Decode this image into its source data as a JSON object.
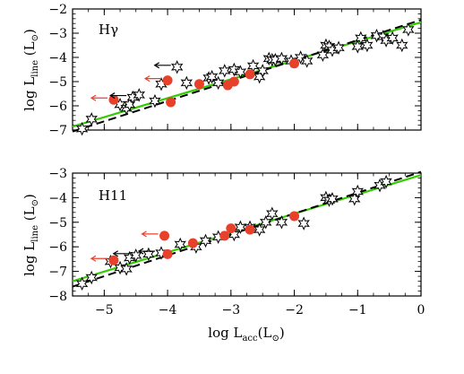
{
  "chart_data": [
    {
      "type": "scatter",
      "panel_label": "Hγ",
      "xlim": [
        -5.5,
        0
      ],
      "ylim": [
        -7,
        -2
      ],
      "xticks": [
        -5,
        -4,
        -3,
        -2,
        -1,
        0
      ],
      "yticks": [
        -7,
        -6,
        -5,
        -4,
        -3,
        -2
      ],
      "xtick_labels": [],
      "ytick_labels": [
        "−7",
        "−6",
        "−5",
        "−4",
        "−3",
        "−2"
      ],
      "ylabel": {
        "main": "log L",
        "sub": "line",
        "unit": "(L",
        "unit_end": ")"
      },
      "fit_lines": [
        {
          "style": "solid",
          "color": "#33cc00",
          "x": [
            -5.5,
            0
          ],
          "y": [
            -6.86,
            -2.55
          ]
        },
        {
          "style": "dashed",
          "color": "#000000",
          "x": [
            -5.5,
            0
          ],
          "y": [
            -7.06,
            -2.45
          ]
        }
      ],
      "series": [
        {
          "marker": "star",
          "color": "#000000",
          "points": [
            [
              -5.35,
              -6.95
            ],
            [
              -5.2,
              -6.55
            ],
            [
              -4.75,
              -5.95
            ],
            [
              -4.65,
              -6.1
            ],
            [
              -4.6,
              -5.95
            ],
            [
              -4.55,
              -5.65
            ],
            [
              -4.45,
              -5.55
            ],
            [
              -4.2,
              -5.8
            ],
            [
              -4.1,
              -5.1
            ],
            [
              -3.85,
              -4.4
            ],
            [
              -3.7,
              -5.05
            ],
            [
              -3.35,
              -4.85
            ],
            [
              -3.3,
              -4.8
            ],
            [
              -3.2,
              -5.05
            ],
            [
              -3.1,
              -4.55
            ],
            [
              -2.95,
              -4.5
            ],
            [
              -2.85,
              -4.6
            ],
            [
              -2.65,
              -4.35
            ],
            [
              -2.55,
              -4.8
            ],
            [
              -2.5,
              -4.55
            ],
            [
              -2.4,
              -4.05
            ],
            [
              -2.35,
              -4.1
            ],
            [
              -2.3,
              -4.1
            ],
            [
              -2.2,
              -4.05
            ],
            [
              -2.05,
              -4.15
            ],
            [
              -1.9,
              -4.0
            ],
            [
              -1.8,
              -4.15
            ],
            [
              -1.55,
              -3.9
            ],
            [
              -1.5,
              -3.5
            ],
            [
              -1.45,
              -3.55
            ],
            [
              -1.4,
              -3.7
            ],
            [
              -1.3,
              -3.6
            ],
            [
              -1.0,
              -3.55
            ],
            [
              -0.95,
              -3.2
            ],
            [
              -0.85,
              -3.5
            ],
            [
              -0.7,
              -3.1
            ],
            [
              -0.6,
              -3.15
            ],
            [
              -0.55,
              -3.3
            ],
            [
              -0.45,
              -3.2
            ],
            [
              -0.3,
              -3.5
            ],
            [
              -0.2,
              -2.85
            ]
          ]
        },
        {
          "marker": "circle",
          "color": "#e8412b",
          "points": [
            [
              -4.85,
              -5.75
            ],
            [
              -4.0,
              -4.95
            ],
            [
              -3.95,
              -5.85
            ],
            [
              -3.5,
              -5.1
            ],
            [
              -3.05,
              -5.15
            ],
            [
              -2.95,
              -5.0
            ],
            [
              -2.7,
              -4.7
            ],
            [
              -2.0,
              -4.25
            ]
          ]
        }
      ],
      "upper_limits": [
        {
          "x": -4.85,
          "y": -5.75,
          "color": "#e8412b"
        },
        {
          "x": -4.0,
          "y": -4.95,
          "color": "#e8412b"
        },
        {
          "x": -3.85,
          "y": -4.4,
          "color": "#000000"
        },
        {
          "x": -4.55,
          "y": -5.65,
          "color": "#000000"
        }
      ]
    },
    {
      "type": "scatter",
      "panel_label": "H11",
      "xlim": [
        -5.5,
        0
      ],
      "ylim": [
        -8,
        -3
      ],
      "xticks": [
        -5,
        -4,
        -3,
        -2,
        -1,
        0
      ],
      "yticks": [
        -8,
        -7,
        -6,
        -5,
        -4,
        -3
      ],
      "xtick_labels": [
        "−5",
        "−4",
        "−3",
        "−2",
        "−1",
        "0"
      ],
      "ytick_labels": [
        "−8",
        "−7",
        "−6",
        "−5",
        "−4",
        "−3"
      ],
      "ylabel": {
        "main": "log L",
        "sub": "line",
        "unit": "(L",
        "unit_end": ")"
      },
      "xlabel": {
        "main": "log L",
        "sub": "acc",
        "unit": "(L",
        "unit_end": ")"
      },
      "fit_lines": [
        {
          "style": "solid",
          "color": "#33cc00",
          "x": [
            -5.5,
            0
          ],
          "y": [
            -7.4,
            -3.08
          ]
        },
        {
          "style": "dashed",
          "color": "#000000",
          "x": [
            -5.5,
            0
          ],
          "y": [
            -7.62,
            -2.95
          ]
        }
      ],
      "series": [
        {
          "marker": "star",
          "color": "#000000",
          "points": [
            [
              -5.35,
              -7.5
            ],
            [
              -5.2,
              -7.25
            ],
            [
              -4.9,
              -6.6
            ],
            [
              -4.75,
              -6.85
            ],
            [
              -4.65,
              -6.9
            ],
            [
              -4.6,
              -6.45
            ],
            [
              -4.5,
              -6.35
            ],
            [
              -4.3,
              -6.3
            ],
            [
              -4.1,
              -6.25
            ],
            [
              -3.8,
              -5.9
            ],
            [
              -3.55,
              -6.0
            ],
            [
              -3.4,
              -5.75
            ],
            [
              -3.2,
              -5.6
            ],
            [
              -2.95,
              -5.5
            ],
            [
              -2.85,
              -5.2
            ],
            [
              -2.7,
              -5.2
            ],
            [
              -2.55,
              -5.3
            ],
            [
              -2.45,
              -5.0
            ],
            [
              -2.35,
              -4.65
            ],
            [
              -2.2,
              -5.0
            ],
            [
              -1.85,
              -5.05
            ],
            [
              -1.5,
              -4.0
            ],
            [
              -1.45,
              -4.1
            ],
            [
              -1.4,
              -4.05
            ],
            [
              -1.05,
              -4.05
            ],
            [
              -1.0,
              -3.75
            ],
            [
              -0.65,
              -3.5
            ],
            [
              -0.55,
              -3.35
            ]
          ]
        },
        {
          "marker": "circle",
          "color": "#e8412b",
          "points": [
            [
              -4.85,
              -6.55
            ],
            [
              -4.05,
              -5.55
            ],
            [
              -4.0,
              -6.3
            ],
            [
              -3.6,
              -5.85
            ],
            [
              -3.1,
              -5.55
            ],
            [
              -3.0,
              -5.25
            ],
            [
              -2.7,
              -5.3
            ],
            [
              -2.0,
              -4.75
            ]
          ]
        }
      ],
      "upper_limits": [
        {
          "x": -4.85,
          "y": -6.55,
          "color": "#e8412b"
        },
        {
          "x": -4.05,
          "y": -5.55,
          "color": "#e8412b"
        },
        {
          "x": -4.5,
          "y": -6.35,
          "color": "#000000"
        },
        {
          "x": -4.1,
          "y": -6.25,
          "color": "#000000"
        }
      ]
    }
  ],
  "colors": {
    "fit_solid": "#33cc00",
    "fit_dashed": "#000000",
    "red_points": "#e8412b"
  },
  "solar_symbol": "⊙"
}
